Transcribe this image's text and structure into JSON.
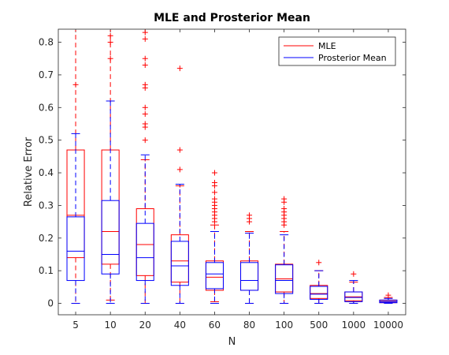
{
  "chart_data": {
    "type": "boxplot",
    "title": "MLE and Prosterior Mean",
    "xlabel": "N",
    "ylabel": "Relative Error",
    "ylim": [
      -0.035,
      0.84
    ],
    "yticks": [
      0,
      0.1,
      0.2,
      0.3,
      0.4,
      0.5,
      0.6,
      0.7,
      0.8
    ],
    "ytick_labels": [
      "0",
      "0.1",
      "0.2",
      "0.3",
      "0.4",
      "0.5",
      "0.6",
      "0.7",
      "0.8"
    ],
    "categories": [
      "5",
      "10",
      "20",
      "40",
      "60",
      "80",
      "100",
      "500",
      "1000",
      "10000"
    ],
    "legend_position": "top-right",
    "series": [
      {
        "name": "MLE",
        "color": "#ff0000",
        "boxes": [
          {
            "whisker_low": 0.0,
            "q1": 0.14,
            "median": 0.27,
            "q3": 0.47,
            "whisker_high": 0.84,
            "outliers": [
              0.67
            ]
          },
          {
            "whisker_low": 0.01,
            "q1": 0.12,
            "median": 0.22,
            "q3": 0.47,
            "whisker_high": 0.84,
            "outliers": [
              0.82,
              0.8,
              0.75
            ]
          },
          {
            "whisker_low": 0.0,
            "q1": 0.085,
            "median": 0.18,
            "q3": 0.29,
            "whisker_high": 0.44,
            "outliers": [
              0.83,
              0.81,
              0.75,
              0.73,
              0.67,
              0.66,
              0.6,
              0.58,
              0.55,
              0.54,
              0.5
            ]
          },
          {
            "whisker_low": 0.0,
            "q1": 0.065,
            "median": 0.13,
            "q3": 0.21,
            "whisker_high": 0.36,
            "outliers": [
              0.72,
              0.47,
              0.41
            ]
          },
          {
            "whisker_low": 0.005,
            "q1": 0.04,
            "median": 0.08,
            "q3": 0.13,
            "whisker_high": 0.24,
            "outliers": [
              0.4,
              0.37,
              0.36,
              0.34,
              0.32,
              0.31,
              0.3,
              0.29,
              0.28,
              0.27,
              0.26,
              0.25
            ]
          },
          {
            "whisker_low": 0.0,
            "q1": 0.04,
            "median": 0.07,
            "q3": 0.13,
            "whisker_high": 0.22,
            "outliers": [
              0.27,
              0.26,
              0.25
            ]
          },
          {
            "whisker_low": 0.0,
            "q1": 0.035,
            "median": 0.075,
            "q3": 0.12,
            "whisker_high": 0.22,
            "outliers": [
              0.32,
              0.31,
              0.29,
              0.28,
              0.27,
              0.26,
              0.25,
              0.24
            ]
          },
          {
            "whisker_low": 0.0,
            "q1": 0.015,
            "median": 0.03,
            "q3": 0.055,
            "whisker_high": 0.1,
            "outliers": [
              0.125
            ]
          },
          {
            "whisker_low": 0.0,
            "q1": 0.008,
            "median": 0.02,
            "q3": 0.035,
            "whisker_high": 0.065,
            "outliers": [
              0.09
            ]
          },
          {
            "whisker_low": 0.0,
            "q1": 0.002,
            "median": 0.006,
            "q3": 0.01,
            "whisker_high": 0.018,
            "outliers": [
              0.025
            ]
          }
        ]
      },
      {
        "name": "Prosterior Mean",
        "color": "#0000ff",
        "boxes": [
          {
            "whisker_low": 0.0,
            "q1": 0.07,
            "median": 0.16,
            "q3": 0.265,
            "whisker_high": 0.52,
            "outliers": []
          },
          {
            "whisker_low": 0.0,
            "q1": 0.09,
            "median": 0.15,
            "q3": 0.315,
            "whisker_high": 0.62,
            "outliers": []
          },
          {
            "whisker_low": 0.0,
            "q1": 0.07,
            "median": 0.14,
            "q3": 0.245,
            "whisker_high": 0.455,
            "outliers": []
          },
          {
            "whisker_low": 0.0,
            "q1": 0.055,
            "median": 0.115,
            "q3": 0.19,
            "whisker_high": 0.365,
            "outliers": []
          },
          {
            "whisker_low": 0.0,
            "q1": 0.045,
            "median": 0.09,
            "q3": 0.125,
            "whisker_high": 0.22,
            "outliers": []
          },
          {
            "whisker_low": 0.0,
            "q1": 0.04,
            "median": 0.07,
            "q3": 0.125,
            "whisker_high": 0.215,
            "outliers": []
          },
          {
            "whisker_low": 0.0,
            "q1": 0.03,
            "median": 0.07,
            "q3": 0.118,
            "whisker_high": 0.21,
            "outliers": []
          },
          {
            "whisker_low": 0.0,
            "q1": 0.012,
            "median": 0.028,
            "q3": 0.052,
            "whisker_high": 0.1,
            "outliers": []
          },
          {
            "whisker_low": 0.0,
            "q1": 0.005,
            "median": 0.018,
            "q3": 0.035,
            "whisker_high": 0.07,
            "outliers": []
          },
          {
            "whisker_low": 0.0,
            "q1": 0.002,
            "median": 0.005,
            "q3": 0.01,
            "whisker_high": 0.015,
            "outliers": []
          }
        ]
      }
    ]
  }
}
